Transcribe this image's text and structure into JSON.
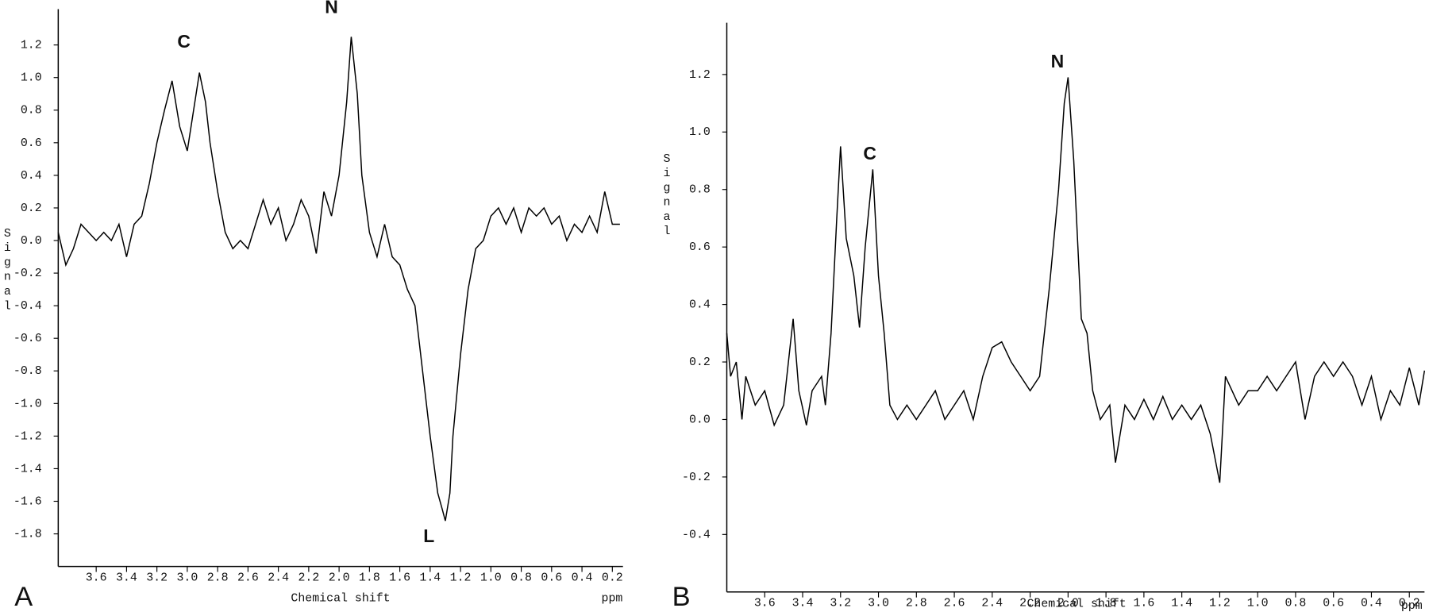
{
  "chart_data": [
    {
      "type": "line",
      "panel_label": "A",
      "y_label": "Signal",
      "x_label": "Chemical shift",
      "x_unit": "ppm",
      "annotations": [
        "C",
        "N",
        "L"
      ],
      "color": "#000000",
      "xlim": [
        3.85,
        0.13
      ],
      "ylim": [
        -2.0,
        1.42
      ],
      "xticks": [
        3.6,
        3.4,
        3.2,
        {
          "value": 3.0,
          "label": "3.0"
        },
        2.8,
        2.6,
        2.4,
        2.2,
        {
          "value": 2.0,
          "label": "2.0"
        },
        1.8,
        1.6,
        1.4,
        1.2,
        {
          "value": 1.0,
          "label": "1.0"
        },
        0.8,
        0.6,
        0.4,
        0.2
      ],
      "yticks": [
        1.2,
        {
          "value": 1.0,
          "label": "1.0"
        },
        0.8,
        0.6,
        0.4,
        0.2,
        {
          "value": 0.0,
          "label": "0.0"
        },
        -0.2,
        -0.4,
        -0.6,
        -0.8,
        {
          "value": -1.0,
          "label": "-1.0"
        },
        -1.2,
        -1.4,
        -1.6,
        -1.8
      ],
      "x": [
        3.85,
        3.8,
        3.75,
        3.7,
        3.65,
        3.6,
        3.55,
        3.5,
        3.45,
        3.4,
        3.35,
        3.3,
        3.25,
        3.2,
        3.15,
        3.1,
        3.05,
        3.0,
        2.95,
        2.92,
        2.88,
        2.85,
        2.8,
        2.75,
        2.7,
        2.65,
        2.6,
        2.55,
        2.5,
        2.45,
        2.4,
        2.35,
        2.3,
        2.25,
        2.2,
        2.15,
        2.1,
        2.05,
        2.0,
        1.95,
        1.92,
        1.88,
        1.85,
        1.8,
        1.75,
        1.7,
        1.65,
        1.6,
        1.55,
        1.5,
        1.45,
        1.4,
        1.35,
        1.32,
        1.3,
        1.27,
        1.25,
        1.2,
        1.15,
        1.1,
        1.05,
        1.0,
        0.95,
        0.9,
        0.85,
        0.8,
        0.75,
        0.7,
        0.65,
        0.6,
        0.55,
        0.5,
        0.45,
        0.4,
        0.35,
        0.3,
        0.25,
        0.2,
        0.15
      ],
      "values": [
        0.05,
        -0.15,
        -0.05,
        0.1,
        0.05,
        0.0,
        0.05,
        0.0,
        0.1,
        -0.1,
        0.1,
        0.15,
        0.35,
        0.6,
        0.8,
        0.98,
        0.7,
        0.55,
        0.85,
        1.03,
        0.85,
        0.6,
        0.3,
        0.05,
        -0.05,
        0.0,
        -0.05,
        0.1,
        0.25,
        0.1,
        0.2,
        0.0,
        0.1,
        0.25,
        0.15,
        -0.08,
        0.3,
        0.15,
        0.4,
        0.85,
        1.25,
        0.9,
        0.4,
        0.05,
        -0.1,
        0.1,
        -0.1,
        -0.15,
        -0.3,
        -0.4,
        -0.8,
        -1.2,
        -1.55,
        -1.65,
        -1.72,
        -1.55,
        -1.2,
        -0.7,
        -0.3,
        -0.05,
        0.0,
        0.15,
        0.2,
        0.1,
        0.2,
        0.05,
        0.2,
        0.15,
        0.2,
        0.1,
        0.15,
        0.0,
        0.1,
        0.05,
        0.15,
        0.05,
        0.3,
        0.1,
        0.1
      ]
    },
    {
      "type": "line",
      "panel_label": "B",
      "y_label": "Signal",
      "x_label": "Chemical shift",
      "x_unit": "ppm",
      "annotations": [
        "C",
        "N"
      ],
      "color": "#000000",
      "xlim": [
        3.8,
        0.12
      ],
      "ylim": [
        -0.6,
        1.38
      ],
      "xticks": [
        3.6,
        3.4,
        3.2,
        {
          "value": 3.0,
          "label": "3.0"
        },
        2.8,
        2.6,
        2.4,
        2.2,
        {
          "value": 2.0,
          "label": "2.0"
        },
        1.8,
        1.6,
        1.4,
        1.2,
        {
          "value": 1.0,
          "label": "1.0"
        },
        0.8,
        0.6,
        0.4,
        0.2
      ],
      "yticks": [
        1.2,
        {
          "value": 1.0,
          "label": "1.0"
        },
        0.8,
        0.6,
        0.4,
        0.2,
        {
          "value": 0.0,
          "label": "0.0"
        },
        -0.2,
        -0.4
      ],
      "x": [
        3.8,
        3.78,
        3.75,
        3.72,
        3.7,
        3.65,
        3.6,
        3.55,
        3.5,
        3.45,
        3.42,
        3.38,
        3.35,
        3.3,
        3.28,
        3.25,
        3.22,
        3.2,
        3.17,
        3.13,
        3.1,
        3.07,
        3.03,
        3.0,
        2.97,
        2.94,
        2.9,
        2.85,
        2.8,
        2.75,
        2.7,
        2.65,
        2.6,
        2.55,
        2.5,
        2.45,
        2.4,
        2.35,
        2.3,
        2.25,
        2.2,
        2.15,
        2.1,
        2.05,
        2.02,
        2.0,
        1.97,
        1.93,
        1.9,
        1.87,
        1.83,
        1.78,
        1.75,
        1.7,
        1.65,
        1.6,
        1.55,
        1.5,
        1.45,
        1.4,
        1.35,
        1.3,
        1.25,
        1.2,
        1.17,
        1.1,
        1.05,
        1.0,
        0.95,
        0.9,
        0.85,
        0.8,
        0.75,
        0.7,
        0.65,
        0.6,
        0.55,
        0.5,
        0.45,
        0.4,
        0.35,
        0.3,
        0.25,
        0.2,
        0.15,
        0.12
      ],
      "values": [
        0.3,
        0.15,
        0.2,
        0.0,
        0.15,
        0.05,
        0.1,
        -0.02,
        0.05,
        0.35,
        0.1,
        -0.02,
        0.1,
        0.15,
        0.05,
        0.3,
        0.7,
        0.95,
        0.63,
        0.5,
        0.32,
        0.6,
        0.87,
        0.5,
        0.3,
        0.05,
        0.0,
        0.05,
        0.0,
        0.05,
        0.1,
        0.0,
        0.05,
        0.1,
        0.0,
        0.15,
        0.25,
        0.27,
        0.2,
        0.15,
        0.1,
        0.15,
        0.45,
        0.8,
        1.1,
        1.19,
        0.9,
        0.35,
        0.3,
        0.1,
        0.0,
        0.05,
        -0.15,
        0.05,
        0.0,
        0.07,
        0.0,
        0.08,
        0.0,
        0.05,
        0.0,
        0.05,
        -0.05,
        -0.22,
        0.15,
        0.05,
        0.1,
        0.1,
        0.15,
        0.1,
        0.15,
        0.2,
        0.0,
        0.15,
        0.2,
        0.15,
        0.2,
        0.15,
        0.05,
        0.15,
        0.0,
        0.1,
        0.05,
        0.18,
        0.05,
        0.17
      ]
    }
  ]
}
